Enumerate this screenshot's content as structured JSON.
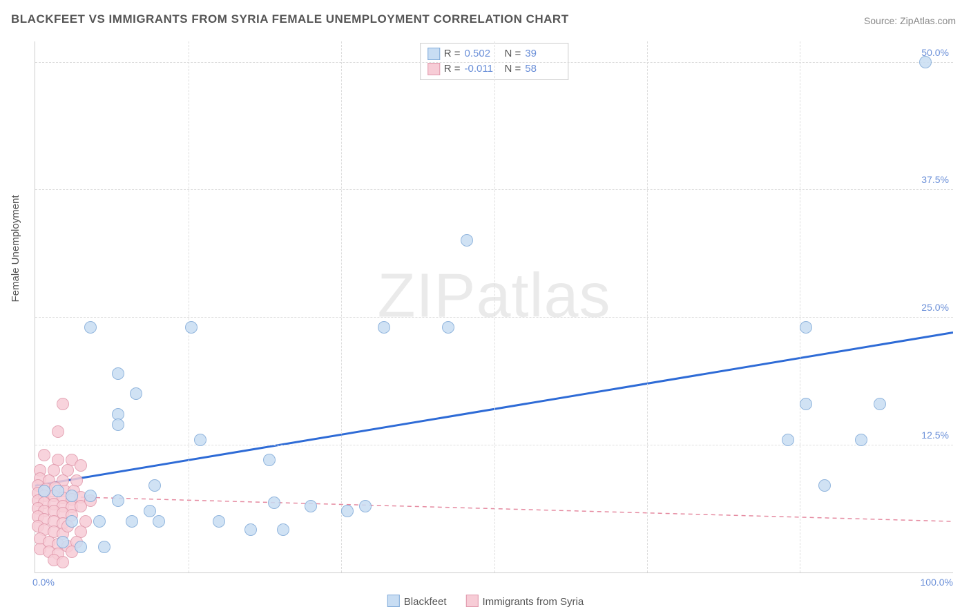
{
  "title": "BLACKFEET VS IMMIGRANTS FROM SYRIA FEMALE UNEMPLOYMENT CORRELATION CHART",
  "source": "Source: ZipAtlas.com",
  "watermark_bold": "ZIP",
  "watermark_light": "atlas",
  "y_axis_title": "Female Unemployment",
  "chart": {
    "xlim": [
      0,
      100
    ],
    "ylim": [
      0,
      52
    ],
    "x_ticks": [
      {
        "x": 0,
        "label": "0.0%"
      },
      {
        "x": 100,
        "label": "100.0%"
      }
    ],
    "x_grid": [
      16.67,
      33.33,
      50,
      66.67,
      83.33
    ],
    "y_ticks": [
      {
        "y": 12.5,
        "label": "12.5%"
      },
      {
        "y": 25,
        "label": "25.0%"
      },
      {
        "y": 37.5,
        "label": "37.5%"
      },
      {
        "y": 50,
        "label": "50.0%"
      }
    ],
    "grid_color": "#dddddd",
    "plot_border_color": "#cccccc",
    "background_color": "#ffffff",
    "tick_label_color": "#6a8fd8",
    "tick_fontsize": 14,
    "axis_title_fontsize": 15,
    "axis_title_color": "#555555",
    "marker_radius": 9
  },
  "series_a": {
    "name": "Blackfeet",
    "R_label": "R =",
    "R": "0.502",
    "N_label": "N =",
    "N": "39",
    "fill": "#c8ddf3",
    "stroke": "#7ea9d8",
    "trend_color": "#2e6bd6",
    "trend_dash": "none",
    "trend_width": 3,
    "trend": {
      "x1": 0,
      "y1": 8.5,
      "x2": 100,
      "y2": 23.5
    },
    "points": [
      [
        97,
        50
      ],
      [
        47,
        32.5
      ],
      [
        6,
        24
      ],
      [
        17,
        24
      ],
      [
        38,
        24
      ],
      [
        45,
        24
      ],
      [
        84,
        24
      ],
      [
        9,
        19.5
      ],
      [
        11,
        17.5
      ],
      [
        9,
        15.5
      ],
      [
        84,
        16.5
      ],
      [
        92,
        16.5
      ],
      [
        9,
        14.5
      ],
      [
        18,
        13
      ],
      [
        82,
        13
      ],
      [
        90,
        13
      ],
      [
        25.5,
        11
      ],
      [
        13,
        8.5
      ],
      [
        86,
        8.5
      ],
      [
        1,
        8
      ],
      [
        2.5,
        8
      ],
      [
        4,
        7.5
      ],
      [
        6,
        7.5
      ],
      [
        9,
        7
      ],
      [
        12.5,
        6
      ],
      [
        26,
        6.8
      ],
      [
        30,
        6.5
      ],
      [
        36,
        6.5
      ],
      [
        4,
        5
      ],
      [
        7,
        5
      ],
      [
        10.5,
        5
      ],
      [
        13.5,
        5
      ],
      [
        20,
        5
      ],
      [
        23.5,
        4.2
      ],
      [
        27,
        4.2
      ],
      [
        3,
        3
      ],
      [
        5,
        2.5
      ],
      [
        7.5,
        2.5
      ],
      [
        34,
        6
      ]
    ]
  },
  "series_b": {
    "name": "Immigrants from Syria",
    "R_label": "R =",
    "R": "-0.011",
    "N_label": "N =",
    "N": "58",
    "fill": "#f7ccd6",
    "stroke": "#e098ab",
    "trend_color": "#e58aa0",
    "trend_dash": "6,5",
    "trend_width": 1.5,
    "trend": {
      "x1": 0,
      "y1": 7.5,
      "x2": 100,
      "y2": 5.0
    },
    "points": [
      [
        3,
        16.5
      ],
      [
        2.5,
        13.8
      ],
      [
        1,
        11.5
      ],
      [
        2.5,
        11
      ],
      [
        4,
        11
      ],
      [
        0.5,
        10
      ],
      [
        2,
        10
      ],
      [
        3.5,
        10
      ],
      [
        5,
        10.5
      ],
      [
        0.5,
        9.2
      ],
      [
        1.5,
        9
      ],
      [
        3,
        9
      ],
      [
        4.5,
        9
      ],
      [
        0.3,
        8.5
      ],
      [
        1.2,
        8.2
      ],
      [
        2.2,
        8.3
      ],
      [
        3.2,
        8
      ],
      [
        4.2,
        8
      ],
      [
        0.3,
        7.8
      ],
      [
        1,
        7.5
      ],
      [
        2,
        7.5
      ],
      [
        3,
        7.3
      ],
      [
        4,
        7.2
      ],
      [
        5,
        7.4
      ],
      [
        0.3,
        7
      ],
      [
        1,
        6.8
      ],
      [
        2,
        6.7
      ],
      [
        3,
        6.5
      ],
      [
        4,
        6.4
      ],
      [
        0.3,
        6.3
      ],
      [
        1,
        6
      ],
      [
        2,
        6
      ],
      [
        3,
        5.8
      ],
      [
        4,
        5.6
      ],
      [
        0.3,
        5.5
      ],
      [
        1,
        5.2
      ],
      [
        2,
        5
      ],
      [
        3,
        4.8
      ],
      [
        0.3,
        4.5
      ],
      [
        1,
        4.2
      ],
      [
        2,
        4
      ],
      [
        3,
        3.8
      ],
      [
        0.5,
        3.3
      ],
      [
        1.5,
        3
      ],
      [
        2.5,
        2.8
      ],
      [
        3.5,
        2.6
      ],
      [
        0.5,
        2.3
      ],
      [
        1.5,
        2
      ],
      [
        2.5,
        1.8
      ],
      [
        2,
        1.2
      ],
      [
        3,
        1
      ],
      [
        5,
        6.5
      ],
      [
        6,
        7
      ],
      [
        5.5,
        5
      ],
      [
        5,
        4
      ],
      [
        4.5,
        3
      ],
      [
        3.5,
        4.5
      ],
      [
        4,
        2
      ]
    ]
  }
}
